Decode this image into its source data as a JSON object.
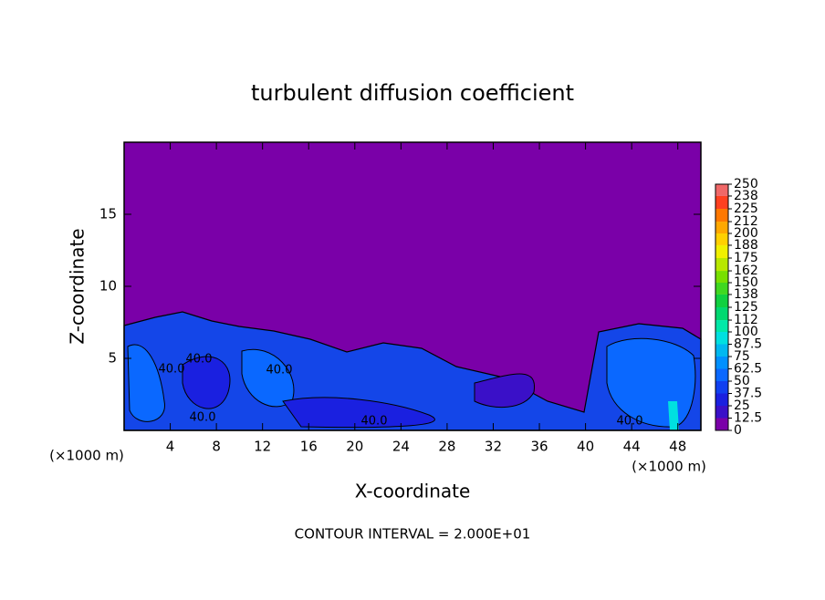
{
  "chart_data": {
    "type": "contour",
    "title": "turbulent diffusion coefficient",
    "xlabel": "X-coordinate",
    "ylabel": "Z-coordinate",
    "x_unit": "(×1000 m)",
    "footer": "CONTOUR INTERVAL = 2.000E+01",
    "xlim": [
      0,
      50
    ],
    "xticks": [
      4,
      8,
      12,
      16,
      20,
      24,
      28,
      32,
      36,
      40,
      44,
      48
    ],
    "ylim": [
      0,
      20
    ],
    "yticks": [
      5,
      10,
      15
    ],
    "contour_labels": [
      "40.0",
      "40.0",
      "40.0",
      "40.0",
      "40.0",
      "40.0"
    ],
    "colorbar": {
      "levels": [
        0,
        12.5,
        25,
        37.5,
        50,
        62.5,
        75,
        87.5,
        100,
        112,
        125,
        138,
        150,
        162,
        175,
        188,
        200,
        212,
        225,
        238,
        250
      ],
      "colors": [
        "#7a00a8",
        "#3a10c8",
        "#1a20e0",
        "#1040f0",
        "#0a68ff",
        "#0090ff",
        "#00b8f0",
        "#00e0e0",
        "#00e8a8",
        "#00d870",
        "#10d040",
        "#40d820",
        "#78e000",
        "#b8e800",
        "#f0f000",
        "#ffd000",
        "#ffa800",
        "#ff7800",
        "#ff4020",
        "#f06868"
      ]
    }
  }
}
